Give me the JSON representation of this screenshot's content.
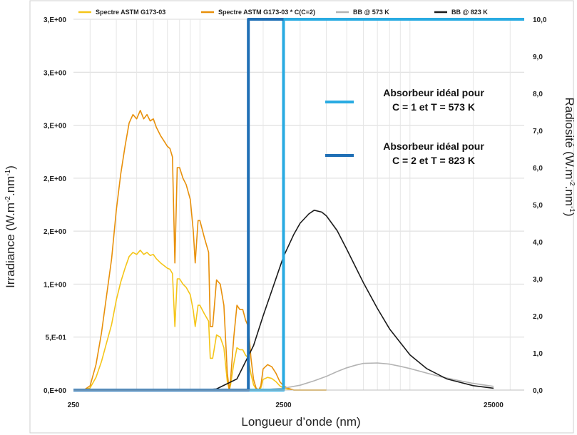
{
  "chart_data": {
    "type": "line",
    "xlabel": "Longueur d’onde (nm)",
    "ylabel_left": "Irradiance (W.m-2.nm-1)",
    "ylabel_right": "Radiosité (W.m-2.nm-1)",
    "x_scale": "log",
    "xlim": [
      250,
      35000
    ],
    "x_ticks": [
      {
        "value": 250,
        "label": "250"
      },
      {
        "value": 2500,
        "label": "2500"
      },
      {
        "value": 25000,
        "label": "25000"
      }
    ],
    "ylim_left": [
      0,
      3.5
    ],
    "y_left_ticks": [
      {
        "value": 0,
        "label": "0,E+00"
      },
      {
        "value": 0.5,
        "label": "5,E-01"
      },
      {
        "value": 1.0,
        "label": "1,E+00"
      },
      {
        "value": 1.5,
        "label": "2,E+00"
      },
      {
        "value": 2.0,
        "label": "2,E+00"
      },
      {
        "value": 2.5,
        "label": "3,E+00"
      },
      {
        "value": 3.0,
        "label": "3,E+00"
      },
      {
        "value": 3.5,
        "label": "3,E+00"
      }
    ],
    "ylim_right": [
      0,
      10
    ],
    "y_right_ticks": [
      {
        "value": 0,
        "label": "0,0"
      },
      {
        "value": 1,
        "label": "1,0"
      },
      {
        "value": 2,
        "label": "2,0"
      },
      {
        "value": 3,
        "label": "3,0"
      },
      {
        "value": 4,
        "label": "4,0"
      },
      {
        "value": 5,
        "label": "5,0"
      },
      {
        "value": 6,
        "label": "6,0"
      },
      {
        "value": 7,
        "label": "7,0"
      },
      {
        "value": 8,
        "label": "8,0"
      },
      {
        "value": 9,
        "label": "9,0"
      },
      {
        "value": 10,
        "label": "10,0"
      }
    ],
    "grid": true,
    "legend_position": "top",
    "legend": [
      {
        "label": "Spectre ASTM G173-03",
        "color": "#f5c518"
      },
      {
        "label": "Spectre ASTM G173-03 * C(C=2)",
        "color": "#e8900a"
      },
      {
        "label": "BB @ 573 K",
        "color": "#b3b3b3"
      },
      {
        "label": "BB @ 823 K",
        "color": "#1a1a1a"
      }
    ],
    "series": [
      {
        "name": "Spectre ASTM G173-03",
        "color": "#f5c518",
        "axis": "left",
        "x": [
          280,
          300,
          320,
          340,
          360,
          380,
          400,
          420,
          440,
          460,
          480,
          500,
          520,
          540,
          560,
          580,
          600,
          620,
          650,
          680,
          700,
          720,
          740,
          760,
          780,
          800,
          830,
          860,
          900,
          930,
          950,
          980,
          1000,
          1050,
          1100,
          1120,
          1150,
          1200,
          1250,
          1300,
          1350,
          1380,
          1400,
          1450,
          1500,
          1550,
          1600,
          1650,
          1700,
          1750,
          1800,
          1850,
          1900,
          1950,
          2000,
          2100,
          2200,
          2300,
          2400,
          2500,
          2600,
          2700,
          2800,
          3000,
          3500,
          4000
        ],
        "y": [
          0.0,
          0.02,
          0.12,
          0.27,
          0.45,
          0.62,
          0.85,
          1.02,
          1.15,
          1.26,
          1.3,
          1.28,
          1.32,
          1.28,
          1.3,
          1.27,
          1.28,
          1.24,
          1.2,
          1.17,
          1.15,
          1.14,
          1.1,
          0.6,
          1.05,
          1.05,
          1.0,
          0.97,
          0.9,
          0.75,
          0.6,
          0.8,
          0.8,
          0.72,
          0.65,
          0.3,
          0.3,
          0.52,
          0.5,
          0.4,
          0.08,
          0.0,
          0.05,
          0.25,
          0.4,
          0.38,
          0.38,
          0.33,
          0.3,
          0.15,
          0.05,
          0.01,
          0.0,
          0.02,
          0.1,
          0.12,
          0.11,
          0.08,
          0.04,
          0.02,
          0.01,
          0.005,
          0.0,
          0.0,
          0.0,
          0.0
        ]
      },
      {
        "name": "Spectre ASTM G173-03 * C(C=2)",
        "color": "#e8900a",
        "axis": "left",
        "x": [
          280,
          300,
          320,
          340,
          360,
          380,
          400,
          420,
          440,
          460,
          480,
          500,
          520,
          540,
          560,
          580,
          600,
          620,
          650,
          680,
          700,
          720,
          740,
          760,
          780,
          800,
          830,
          860,
          900,
          930,
          950,
          980,
          1000,
          1050,
          1100,
          1120,
          1150,
          1200,
          1250,
          1300,
          1350,
          1380,
          1400,
          1450,
          1500,
          1550,
          1600,
          1650,
          1700,
          1750,
          1800,
          1850,
          1900,
          1950,
          2000,
          2100,
          2200,
          2300,
          2400,
          2500,
          2600,
          2700,
          2800,
          3000,
          3500,
          4000
        ],
        "y": [
          0.0,
          0.04,
          0.24,
          0.54,
          0.9,
          1.24,
          1.7,
          2.04,
          2.3,
          2.52,
          2.6,
          2.56,
          2.64,
          2.56,
          2.6,
          2.54,
          2.56,
          2.48,
          2.4,
          2.34,
          2.3,
          2.28,
          2.2,
          1.2,
          2.1,
          2.1,
          2.0,
          1.94,
          1.8,
          1.5,
          1.2,
          1.6,
          1.6,
          1.44,
          1.3,
          0.6,
          0.6,
          1.04,
          1.0,
          0.8,
          0.16,
          0.0,
          0.1,
          0.5,
          0.8,
          0.76,
          0.76,
          0.66,
          0.6,
          0.3,
          0.1,
          0.02,
          0.0,
          0.04,
          0.2,
          0.24,
          0.22,
          0.16,
          0.08,
          0.04,
          0.02,
          0.01,
          0.0,
          0.0,
          0.0,
          0.0
        ]
      },
      {
        "name": "BB @ 573 K",
        "color": "#b3b3b3",
        "axis": "right",
        "x": [
          1500,
          2000,
          2500,
          3000,
          3500,
          4000,
          4500,
          5000,
          5500,
          6000,
          7000,
          8000,
          9000,
          10000,
          12000,
          14000,
          17000,
          20000,
          25000
        ],
        "y": [
          0.0,
          0.01,
          0.05,
          0.13,
          0.25,
          0.37,
          0.5,
          0.6,
          0.67,
          0.72,
          0.73,
          0.7,
          0.64,
          0.58,
          0.46,
          0.36,
          0.26,
          0.18,
          0.1
        ]
      },
      {
        "name": "BB @ 823 K",
        "color": "#1a1a1a",
        "axis": "right",
        "x": [
          300,
          1000,
          1200,
          1500,
          1800,
          2000,
          2300,
          2500,
          2800,
          3000,
          3300,
          3500,
          3800,
          4000,
          4500,
          5000,
          6000,
          7000,
          8000,
          10000,
          12000,
          15000,
          20000,
          25000
        ],
        "y": [
          0.0,
          0.0,
          0.03,
          0.3,
          1.2,
          2.0,
          3.0,
          3.6,
          4.2,
          4.5,
          4.75,
          4.85,
          4.8,
          4.7,
          4.3,
          3.8,
          2.9,
          2.2,
          1.65,
          0.95,
          0.58,
          0.3,
          0.12,
          0.05
        ]
      },
      {
        "name": "Absorbeur idéal pour C = 1 et T = 573 K",
        "color": "#29abe2",
        "axis": "right",
        "x": [
          250,
          2500,
          2500,
          35000
        ],
        "y": [
          0.0,
          0.0,
          10.0,
          10.0
        ]
      },
      {
        "name": "Absorbeur idéal pour C = 2 et T = 823 K",
        "color": "#1f6fb5",
        "axis": "right",
        "x": [
          250,
          1700,
          1700,
          2500
        ],
        "y": [
          0.0,
          0.0,
          10.0,
          10.0
        ]
      }
    ],
    "annotations": [
      {
        "text_lines": [
          "Absorbeur idéal pour",
          "C = 1 et T = 573 K"
        ],
        "color": "#29abe2"
      },
      {
        "text_lines": [
          "Absorbeur idéal pour",
          "C = 2 et T = 823 K"
        ],
        "color": "#1f6fb5"
      }
    ]
  }
}
